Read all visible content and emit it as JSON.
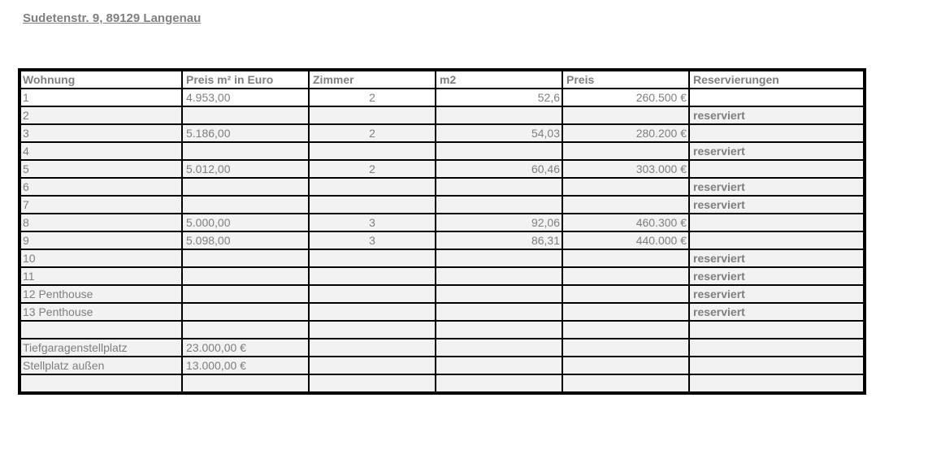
{
  "title": "Sudetenstr. 9, 89129 Langenau",
  "table": {
    "headers": [
      "Wohnung",
      "Preis m² in Euro",
      "Zimmer",
      "m2",
      "Preis",
      "Reservierungen"
    ],
    "rows": [
      [
        "1",
        "4.953,00",
        "2",
        "52,6",
        "260.500 €",
        ""
      ],
      [
        "2",
        "",
        "",
        "",
        "",
        "reserviert"
      ],
      [
        "3",
        "5.186,00",
        "2",
        "54,03",
        "280.200 €",
        ""
      ],
      [
        "4",
        "",
        "",
        "",
        "",
        "reserviert"
      ],
      [
        "5",
        "5.012,00",
        "2",
        "60,46",
        "303.000 €",
        ""
      ],
      [
        "6",
        "",
        "",
        "",
        "",
        "reserviert"
      ],
      [
        "7",
        "",
        "",
        "",
        "",
        "reserviert"
      ],
      [
        "8",
        "5.000,00",
        "3",
        "92,06",
        "460.300 €",
        ""
      ],
      [
        "9",
        "5.098,00",
        "3",
        "86,31",
        "440.000 €",
        ""
      ],
      [
        "10",
        "",
        "",
        "",
        "",
        "reserviert"
      ],
      [
        "11",
        "",
        "",
        "",
        "",
        "reserviert"
      ],
      [
        "12 Penthouse",
        "",
        "",
        "",
        "",
        "reserviert"
      ],
      [
        "13 Penthouse",
        "",
        "",
        "",
        "",
        "reserviert"
      ],
      [
        "",
        "",
        "",
        "",
        "",
        ""
      ],
      [
        "Tiefgaragenstellplatz",
        "23.000,00 €",
        "",
        "",
        "",
        ""
      ],
      [
        "Stellplatz außen",
        "13.000,00 €",
        "",
        "",
        "",
        ""
      ],
      [
        "",
        "",
        "",
        "",
        "",
        ""
      ]
    ]
  }
}
